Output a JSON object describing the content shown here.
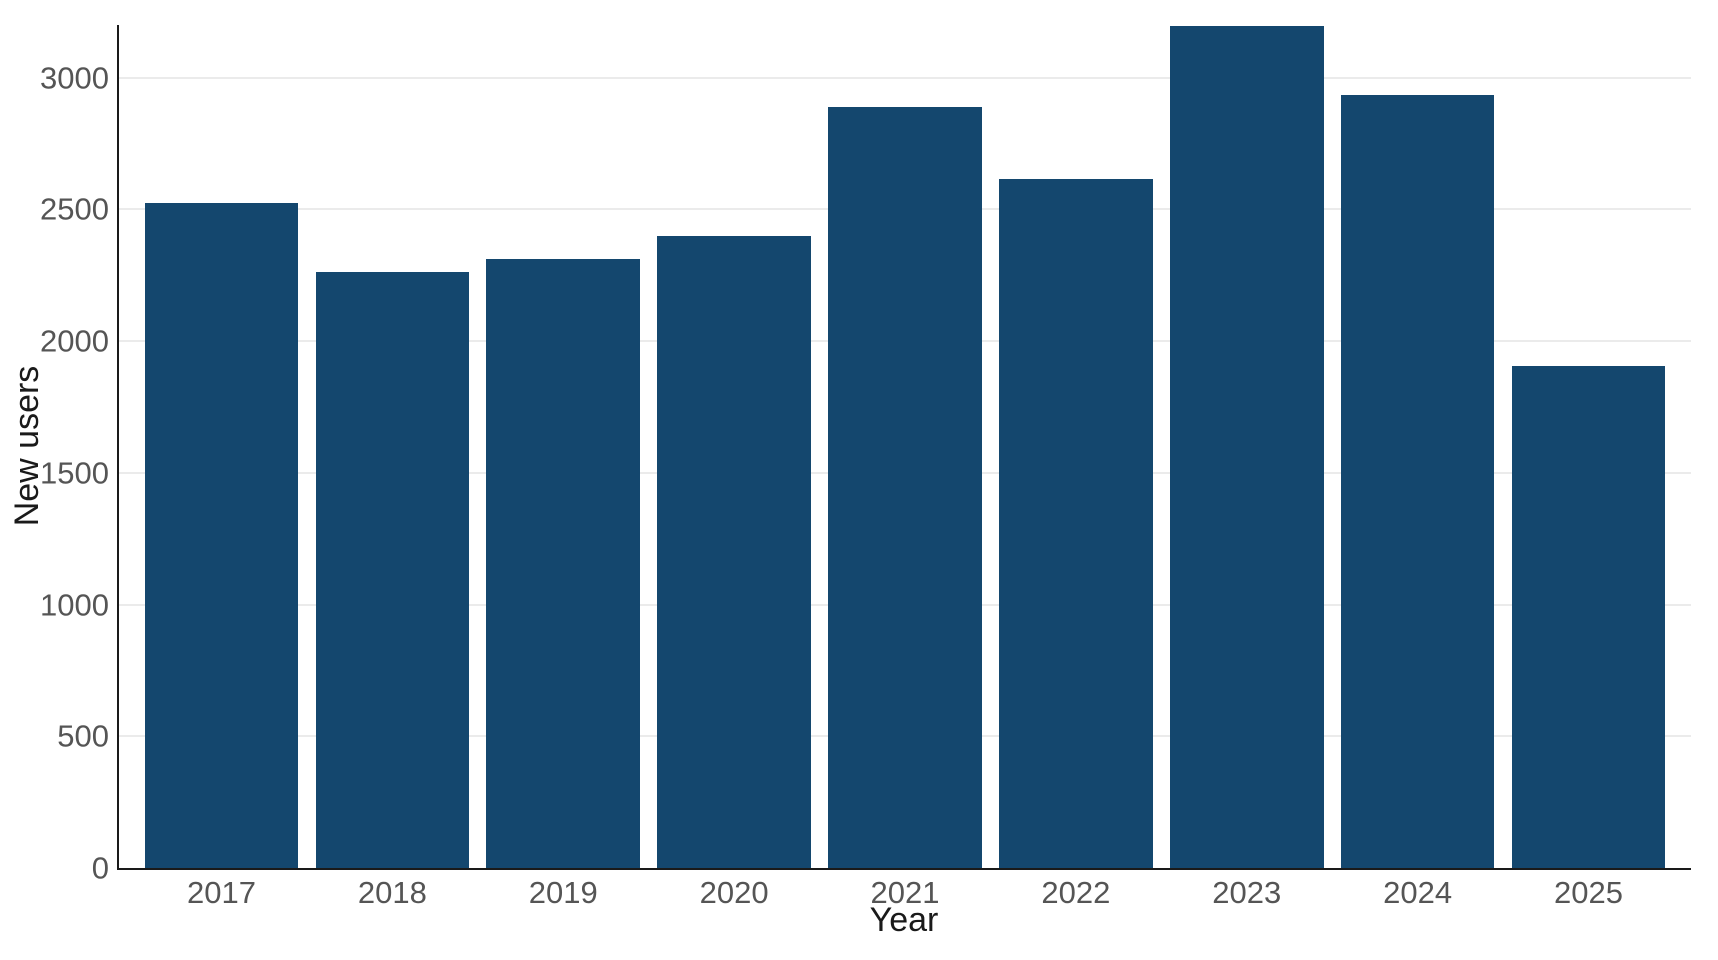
{
  "chart_data": {
    "type": "bar",
    "title": "",
    "xlabel": "Year",
    "ylabel": "New users",
    "categories": [
      "2017",
      "2018",
      "2019",
      "2020",
      "2021",
      "2022",
      "2023",
      "2024",
      "2025"
    ],
    "values": [
      2525,
      2262,
      2310,
      2400,
      2888,
      2616,
      3197,
      2936,
      1907
    ],
    "ylim": [
      0,
      3200
    ],
    "yticks": [
      0,
      500,
      1000,
      1500,
      2000,
      2500,
      3000
    ],
    "grid": "horizontal-major-only",
    "legend": "none",
    "bar_width_fraction": 0.9,
    "colors": {
      "bar": "#14476e",
      "gridline": "#ebebeb",
      "axis_line": "#1a1a1a",
      "tick_label": "#555555",
      "axis_title": "#1a1a1a",
      "background": "#ffffff"
    }
  }
}
